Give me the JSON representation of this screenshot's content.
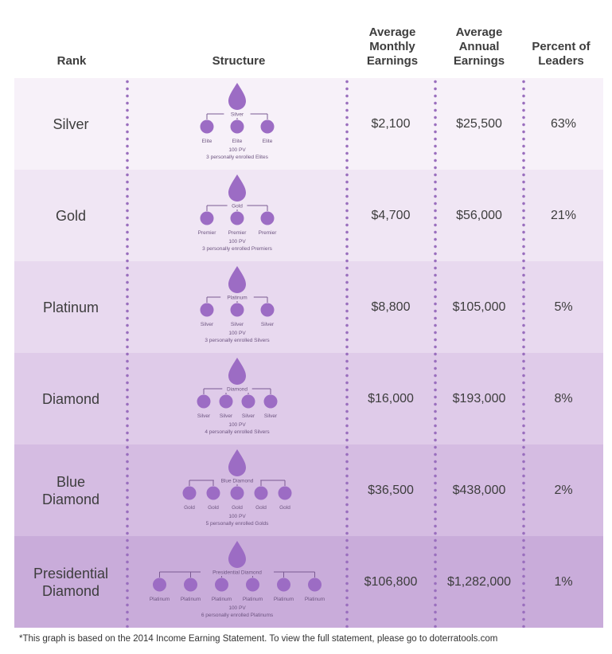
{
  "headers": {
    "rank": "Rank",
    "structure": "Structure",
    "monthly": "Average\nMonthly\nEarnings",
    "annual": "Average\nAnnual\nEarnings",
    "percent": "Percent of\nLeaders"
  },
  "colors": {
    "drop": "#9c6cc4",
    "row_bg": [
      "#f7f1f9",
      "#f0e6f4",
      "#e8d9ef",
      "#dfcbe9",
      "#d5bce2",
      "#c9acda"
    ],
    "dots": "#9a6fbe"
  },
  "rows": [
    {
      "rank": "Silver",
      "top_label": "Silver",
      "child_label": "Elite",
      "child_count": 3,
      "pv": "100 PV",
      "note": "3 personally enrolled Elites",
      "monthly": "$2,100",
      "annual": "$25,500",
      "percent": "63%"
    },
    {
      "rank": "Gold",
      "top_label": "Gold",
      "child_label": "Premier",
      "child_count": 3,
      "pv": "100 PV",
      "note": "3 personally enrolled Premiers",
      "monthly": "$4,700",
      "annual": "$56,000",
      "percent": "21%"
    },
    {
      "rank": "Platinum",
      "top_label": "Platinum",
      "child_label": "Silver",
      "child_count": 3,
      "pv": "100 PV",
      "note": "3 personally enrolled Silvers",
      "monthly": "$8,800",
      "annual": "$105,000",
      "percent": "5%"
    },
    {
      "rank": "Diamond",
      "top_label": "Diamond",
      "child_label": "Silver",
      "child_count": 4,
      "pv": "100 PV",
      "note": "4 personally enrolled Silvers",
      "monthly": "$16,000",
      "annual": "$193,000",
      "percent": "8%"
    },
    {
      "rank": "Blue\nDiamond",
      "top_label": "Blue Diamond",
      "child_label": "Gold",
      "child_count": 5,
      "pv": "100 PV",
      "note": "5 personally enrolled Golds",
      "monthly": "$36,500",
      "annual": "$438,000",
      "percent": "2%"
    },
    {
      "rank": "Presidential\nDiamond",
      "top_label": "Presidential Diamond",
      "child_label": "Platinum",
      "child_count": 6,
      "pv": "100 PV",
      "note": "6 personally enrolled Platinums",
      "monthly": "$106,800",
      "annual": "$1,282,000",
      "percent": "1%"
    }
  ],
  "chart_data": {
    "type": "table",
    "columns": [
      "Rank",
      "Structure",
      "Average Monthly Earnings",
      "Average Annual Earnings",
      "Percent of Leaders"
    ],
    "rows": [
      [
        "Silver",
        "3 personally enrolled Elites",
        "$2,100",
        "$25,500",
        "63%"
      ],
      [
        "Gold",
        "3 personally enrolled Premiers",
        "$4,700",
        "$56,000",
        "21%"
      ],
      [
        "Platinum",
        "3 personally enrolled Silvers",
        "$8,800",
        "$105,000",
        "5%"
      ],
      [
        "Diamond",
        "4 personally enrolled Silvers",
        "$16,000",
        "$193,000",
        "8%"
      ],
      [
        "Blue Diamond",
        "5 personally enrolled Golds",
        "$36,500",
        "$438,000",
        "2%"
      ],
      [
        "Presidential Diamond",
        "6 personally enrolled Platinums",
        "$106,800",
        "$1,282,000",
        "1%"
      ]
    ]
  },
  "footnote": "*This graph is based on the 2014 Income Earning Statement. To view the full statement, please go to doterratools.com"
}
